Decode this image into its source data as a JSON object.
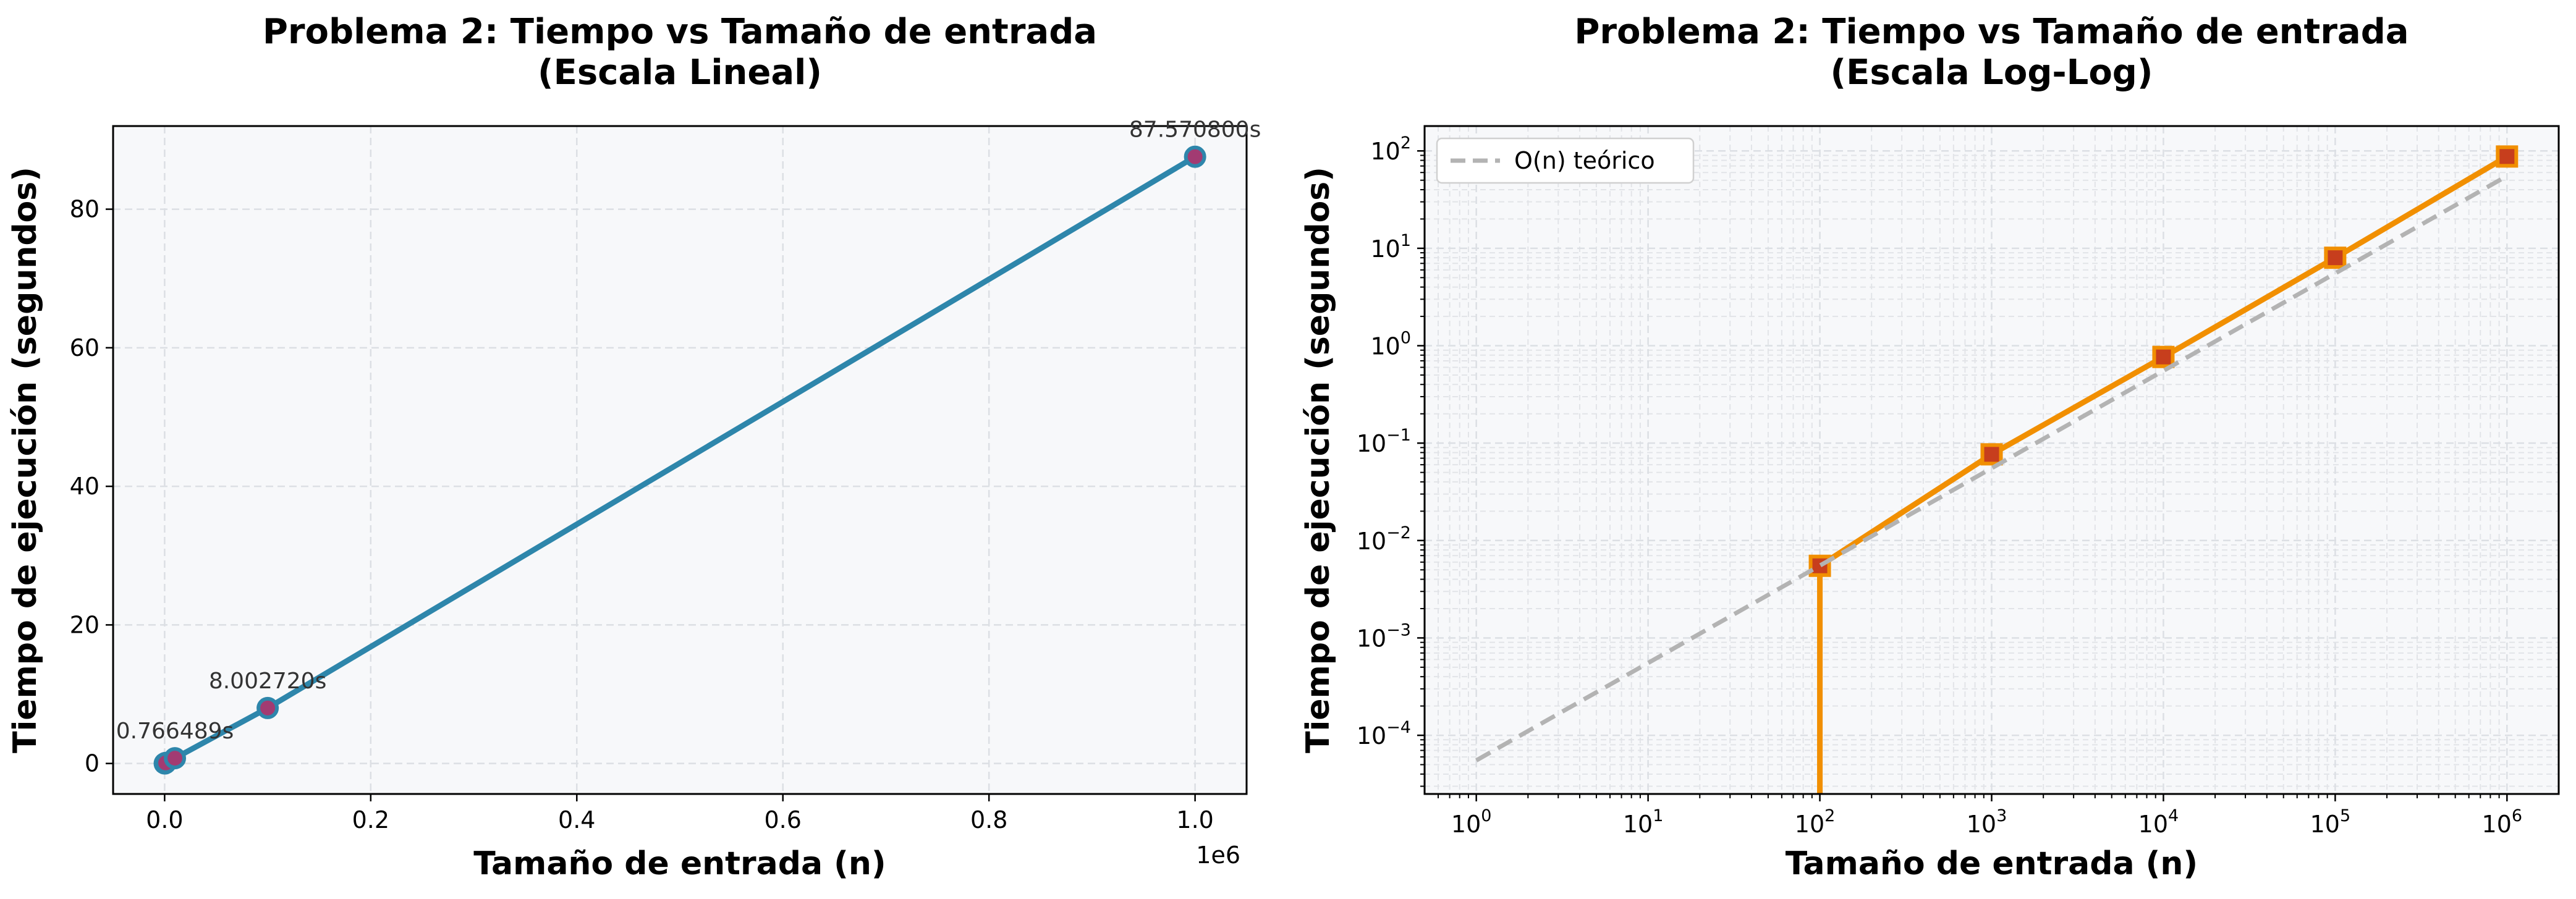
{
  "chart_data": [
    {
      "type": "line",
      "title": "Problema 2: Tiempo vs Tamaño de entrada\n(Escala Lineal)",
      "xlabel": "Tamaño de entrada (n)",
      "ylabel": "Tiempo de ejecución (segundos)",
      "x_scale": "linear",
      "y_scale": "linear",
      "x_offset_label": "1e6",
      "xlim": [
        -50000,
        1050000
      ],
      "ylim": [
        -4.4,
        92.0
      ],
      "xticks": [
        0,
        200000,
        400000,
        600000,
        800000,
        1000000
      ],
      "xtick_labels": [
        "0.0",
        "0.2",
        "0.4",
        "0.6",
        "0.8",
        "1.0"
      ],
      "yticks": [
        0,
        20,
        40,
        60,
        80
      ],
      "ytick_labels": [
        "0",
        "20",
        "40",
        "60",
        "80"
      ],
      "grid": true,
      "series": [
        {
          "x": [
            100,
            1000,
            10000,
            100000,
            1000000
          ],
          "y": [
            0.0055,
            0.0767,
            0.766489,
            8.00272,
            87.5708
          ],
          "color": "#2e86ab",
          "marker": "circle",
          "marker_face": "#a23b72"
        }
      ],
      "annotations": [
        {
          "x": 10000,
          "y": 0.766489,
          "text": "0.766489s"
        },
        {
          "x": 100000,
          "y": 8.00272,
          "text": "8.002720s"
        },
        {
          "x": 1000000,
          "y": 87.5708,
          "text": "87.570800s"
        }
      ]
    },
    {
      "type": "line",
      "title": "Problema 2: Tiempo vs Tamaño de entrada\n(Escala Log-Log)",
      "xlabel": "Tamaño de entrada (n)",
      "ylabel": "Tiempo de ejecución (segundos)",
      "x_scale": "log",
      "y_scale": "log",
      "xlim": [
        0.5,
        2000000
      ],
      "ylim": [
        2.5e-05,
        180
      ],
      "xticks": [
        1,
        10,
        100,
        1000,
        10000,
        100000,
        1000000
      ],
      "xtick_labels": [
        [
          "10",
          "0"
        ],
        [
          "10",
          "1"
        ],
        [
          "10",
          "2"
        ],
        [
          "10",
          "3"
        ],
        [
          "10",
          "4"
        ],
        [
          "10",
          "5"
        ],
        [
          "10",
          "6"
        ]
      ],
      "yticks": [
        0.0001,
        0.001,
        0.01,
        0.1,
        1,
        10,
        100
      ],
      "ytick_labels": [
        [
          "10",
          "−4"
        ],
        [
          "10",
          "−3"
        ],
        [
          "10",
          "−2"
        ],
        [
          "10",
          "−1"
        ],
        [
          "10",
          "0"
        ],
        [
          "10",
          "1"
        ],
        [
          "10",
          "2"
        ]
      ],
      "grid": true,
      "legend_position": "top-left",
      "series": [
        {
          "x": [
            100,
            1000,
            10000,
            100000,
            1000000
          ],
          "y": [
            0.0055,
            0.0767,
            0.766489,
            8.00272,
            87.5708
          ],
          "color": "#f18f01",
          "marker": "square",
          "marker_face": "#c73e1d",
          "drop_to_bottom_at_first_point": true
        },
        {
          "name": "O(n) teórico",
          "x": [
            1,
            1000000
          ],
          "y": [
            5.53e-05,
            55.3
          ],
          "color": "#b3b3b3",
          "dashed": true
        }
      ]
    }
  ]
}
